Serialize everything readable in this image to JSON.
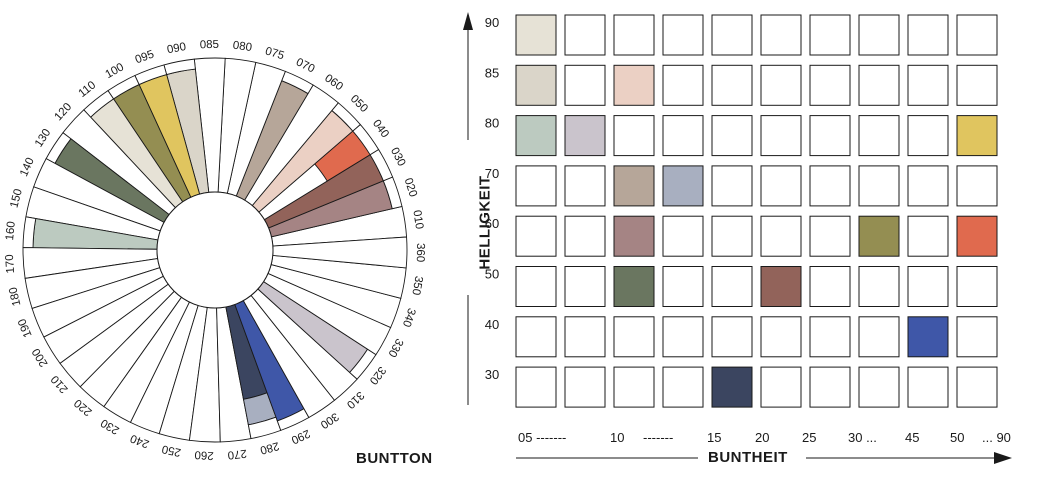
{
  "wheel": {
    "title": "BUNTTON",
    "labels": [
      "010",
      "020",
      "030",
      "040",
      "050",
      "060",
      "070",
      "075",
      "080",
      "085",
      "090",
      "095",
      "100",
      "110",
      "120",
      "130",
      "140",
      "150",
      "160",
      "170",
      "180",
      "190",
      "200",
      "210",
      "220",
      "230",
      "240",
      "250",
      "260",
      "270",
      "280",
      "290",
      "300",
      "310",
      "320",
      "330",
      "340",
      "350",
      "360"
    ],
    "colored": [
      {
        "hue": "020",
        "color": "#a58484"
      },
      {
        "hue": "030",
        "color": "#92635a"
      },
      {
        "hue": "040",
        "color": "#e06a4e",
        "partial": "outer"
      },
      {
        "hue": "050",
        "color": "#ebd0c4"
      },
      {
        "hue": "070",
        "color": "#b6a699"
      },
      {
        "hue": "090",
        "color": "#dad5c9"
      },
      {
        "hue": "095",
        "color": "#e0c55f"
      },
      {
        "hue": "100",
        "color": "#948e52"
      },
      {
        "hue": "110",
        "color": "#e6e2d6"
      },
      {
        "hue": "130",
        "color": "#6a7660"
      },
      {
        "hue": "160",
        "color": "#bccac0"
      },
      {
        "hue": "280",
        "color": "#3b4560",
        "outer_color": "#a8afc0"
      },
      {
        "hue": "290",
        "color": "#3f57a8"
      },
      {
        "hue": "320",
        "color": "#cac4cc"
      }
    ]
  },
  "grid": {
    "y_title": "HELLIGKEIT",
    "x_title": "BUNTHEIT",
    "y_labels": [
      "90",
      "85",
      "80",
      "70",
      "60",
      "50",
      "40",
      "30"
    ],
    "x_labels": [
      "05 -------",
      "10",
      "-------",
      "15",
      "20",
      "25",
      "30 ...",
      "45",
      "50",
      "... 90"
    ],
    "colored_cells": [
      {
        "row": "90",
        "col": 0,
        "color": "#e6e2d6"
      },
      {
        "row": "85",
        "col": 0,
        "color": "#dad5c9"
      },
      {
        "row": "85",
        "col": 2,
        "color": "#ebd0c4"
      },
      {
        "row": "80",
        "col": 0,
        "color": "#bccac0"
      },
      {
        "row": "80",
        "col": 1,
        "color": "#cac4cc"
      },
      {
        "row": "80",
        "col": 9,
        "color": "#e0c55f"
      },
      {
        "row": "70",
        "col": 2,
        "color": "#b6a699"
      },
      {
        "row": "70",
        "col": 3,
        "color": "#a8afc0"
      },
      {
        "row": "60",
        "col": 2,
        "color": "#a58484"
      },
      {
        "row": "60",
        "col": 7,
        "color": "#948e52"
      },
      {
        "row": "60",
        "col": 9,
        "color": "#e06a4e"
      },
      {
        "row": "50",
        "col": 2,
        "color": "#6a7660"
      },
      {
        "row": "50",
        "col": 5,
        "color": "#92635a"
      },
      {
        "row": "40",
        "col": 8,
        "color": "#3f57a8"
      },
      {
        "row": "30",
        "col": 4,
        "color": "#3b4560"
      }
    ]
  }
}
